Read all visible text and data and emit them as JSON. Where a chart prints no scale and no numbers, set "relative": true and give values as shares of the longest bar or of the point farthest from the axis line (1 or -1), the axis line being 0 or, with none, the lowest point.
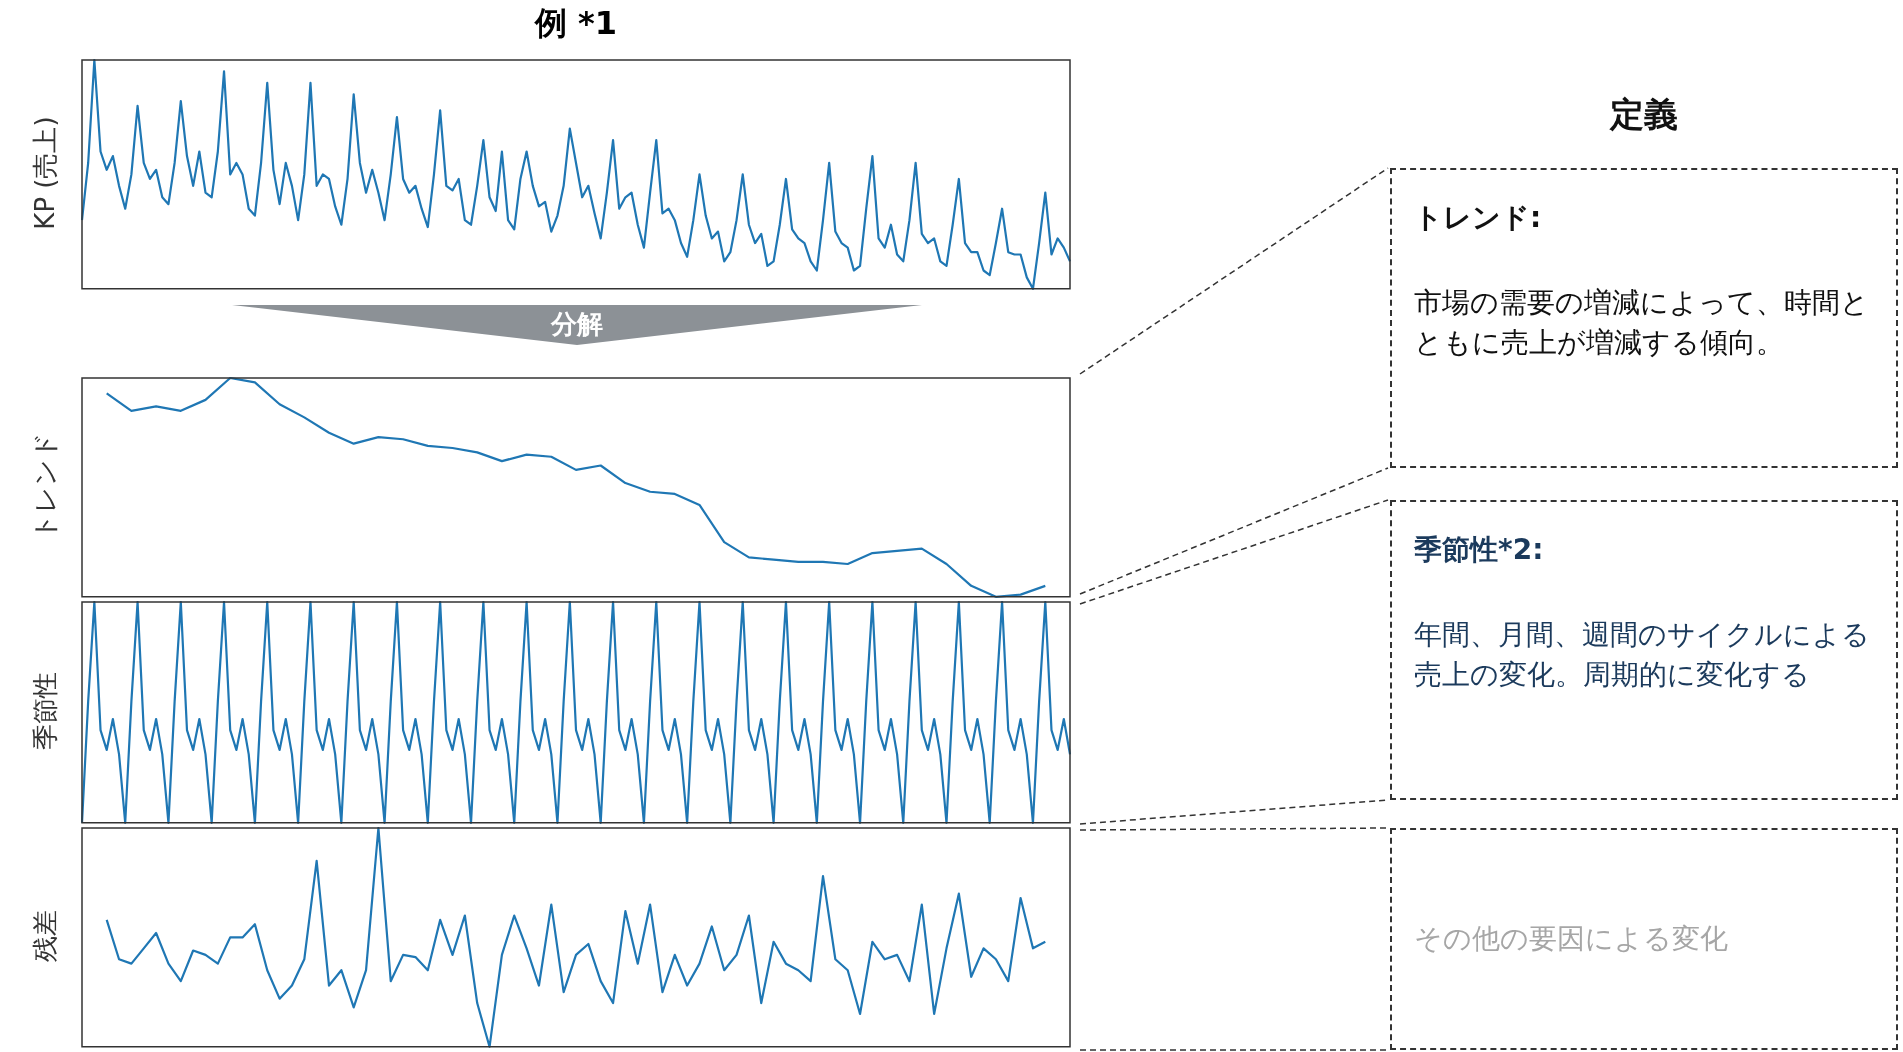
{
  "chart_data": [
    {
      "type": "line",
      "relative": true,
      "title": "例 *1",
      "ylabel": "KP (売上)",
      "annotations": [
        "分解"
      ],
      "categories": [
        null,
        null,
        null,
        null,
        null,
        null,
        null,
        null,
        null,
        null,
        null,
        null,
        null,
        null,
        null,
        null,
        null,
        null,
        null,
        null,
        null,
        null,
        null,
        null,
        null,
        null,
        null,
        null,
        null,
        null,
        null,
        null,
        null,
        null,
        null,
        null,
        null,
        null,
        null,
        null,
        null,
        null,
        null,
        null,
        null,
        null,
        null,
        null,
        null,
        null,
        null,
        null,
        null,
        null,
        null,
        null,
        null,
        null,
        null,
        null,
        null,
        null,
        null,
        null,
        null,
        null,
        null,
        null,
        null,
        null,
        null,
        null,
        null,
        null,
        null,
        null,
        null,
        null,
        null,
        null,
        null,
        null,
        null,
        null,
        null,
        null,
        null,
        null,
        null,
        null,
        null,
        null,
        null,
        null,
        null,
        null,
        null,
        null,
        null,
        null,
        null,
        null,
        null,
        null,
        null,
        null,
        null,
        null,
        null,
        null,
        null,
        null,
        null,
        null,
        null,
        null,
        null,
        null,
        null,
        null,
        null,
        null,
        null,
        null,
        null,
        null,
        null,
        null,
        null,
        null,
        null,
        null,
        null,
        null,
        null,
        null,
        null,
        null,
        null,
        null,
        null,
        null,
        null,
        null,
        null,
        null,
        null,
        null,
        null,
        null,
        null,
        null,
        null,
        null,
        null,
        null,
        null,
        null,
        null,
        null,
        null
      ],
      "series": [
        {
          "color": "#1f77b4",
          "values": [
            0.3,
            0.55,
            1.0,
            0.6,
            0.52,
            0.58,
            0.45,
            0.35,
            0.5,
            0.8,
            0.55,
            0.48,
            0.52,
            0.4,
            0.37,
            0.55,
            0.82,
            0.58,
            0.45,
            0.6,
            0.42,
            0.4,
            0.6,
            0.95,
            0.5,
            0.55,
            0.5,
            0.35,
            0.32,
            0.55,
            0.9,
            0.52,
            0.37,
            0.55,
            0.45,
            0.3,
            0.5,
            0.9,
            0.45,
            0.5,
            0.48,
            0.36,
            0.28,
            0.48,
            0.85,
            0.55,
            0.42,
            0.52,
            0.42,
            0.3,
            0.5,
            0.75,
            0.48,
            0.42,
            0.45,
            0.35,
            0.27,
            0.5,
            0.78,
            0.45,
            0.43,
            0.48,
            0.3,
            0.28,
            0.45,
            0.65,
            0.4,
            0.34,
            0.6,
            0.3,
            0.26,
            0.48,
            0.6,
            0.45,
            0.36,
            0.38,
            0.25,
            0.32,
            0.45,
            0.7,
            0.55,
            0.4,
            0.45,
            0.33,
            0.22,
            0.42,
            0.65,
            0.35,
            0.4,
            0.42,
            0.28,
            0.18,
            0.42,
            0.65,
            0.33,
            0.35,
            0.3,
            0.2,
            0.14,
            0.3,
            0.5,
            0.32,
            0.22,
            0.25,
            0.12,
            0.16,
            0.3,
            0.5,
            0.28,
            0.2,
            0.24,
            0.1,
            0.12,
            0.28,
            0.48,
            0.26,
            0.22,
            0.2,
            0.12,
            0.08,
            0.3,
            0.55,
            0.25,
            0.2,
            0.18,
            0.08,
            0.1,
            0.35,
            0.58,
            0.22,
            0.18,
            0.28,
            0.15,
            0.12,
            0.3,
            0.55,
            0.24,
            0.2,
            0.22,
            0.12,
            0.1,
            0.28,
            0.48,
            0.2,
            0.16,
            0.16,
            0.08,
            0.06,
            0.2,
            0.35,
            0.16,
            0.15,
            0.15,
            0.05,
            0.0,
            0.2,
            0.42,
            0.15,
            0.22,
            0.18,
            0.12
          ]
        }
      ]
    },
    {
      "type": "line",
      "relative": true,
      "ylabel": "トレンド",
      "annotations": [
        "定義",
        "トレンド:",
        "市場の需要の増減によって、時間とともに売上が増減する傾向。"
      ],
      "categories": [
        null,
        null,
        null,
        null,
        null,
        null,
        null,
        null,
        null,
        null,
        null,
        null,
        null,
        null,
        null,
        null,
        null,
        null,
        null,
        null,
        null,
        null,
        null,
        null,
        null,
        null,
        null,
        null,
        null,
        null,
        null,
        null,
        null,
        null,
        null,
        null,
        null,
        null,
        null,
        null,
        null
      ],
      "series": [
        {
          "color": "#1f77b4",
          "values": [
            null,
            0.93,
            0.85,
            0.87,
            0.85,
            0.9,
            1.0,
            0.98,
            0.88,
            0.82,
            0.75,
            0.7,
            0.73,
            0.72,
            0.69,
            0.68,
            0.66,
            0.62,
            0.65,
            0.64,
            0.58,
            0.6,
            0.52,
            0.48,
            0.47,
            0.42,
            0.25,
            0.18,
            0.17,
            0.16,
            0.16,
            0.15,
            0.2,
            0.21,
            0.22,
            0.15,
            0.05,
            0.0,
            0.01,
            0.05,
            null
          ]
        }
      ]
    },
    {
      "type": "line",
      "relative": true,
      "ylabel": "季節性",
      "annotations": [
        "季節性*2:",
        "年間、月間、週間のサイクルによる売上の変化。周期的に変化する"
      ],
      "categories": [
        null,
        null,
        null,
        null,
        null,
        null,
        null,
        null,
        null,
        null,
        null,
        null,
        null,
        null,
        null,
        null,
        null,
        null,
        null,
        null,
        null,
        null,
        null,
        null,
        null,
        null,
        null,
        null,
        null,
        null,
        null,
        null,
        null,
        null,
        null,
        null,
        null,
        null,
        null,
        null,
        null,
        null,
        null,
        null,
        null,
        null,
        null,
        null,
        null,
        null,
        null,
        null,
        null,
        null,
        null,
        null,
        null,
        null,
        null,
        null,
        null,
        null,
        null,
        null,
        null,
        null,
        null,
        null,
        null,
        null,
        null,
        null,
        null,
        null,
        null,
        null,
        null,
        null,
        null,
        null,
        null,
        null,
        null,
        null,
        null,
        null,
        null,
        null,
        null,
        null,
        null,
        null,
        null,
        null,
        null,
        null,
        null,
        null,
        null,
        null,
        null,
        null,
        null,
        null,
        null,
        null,
        null,
        null,
        null,
        null,
        null,
        null,
        null,
        null,
        null,
        null,
        null,
        null,
        null,
        null,
        null,
        null,
        null,
        null,
        null,
        null,
        null,
        null,
        null,
        null,
        null,
        null,
        null,
        null,
        null,
        null,
        null,
        null,
        null,
        null,
        null,
        null,
        null,
        null,
        null,
        null,
        null,
        null,
        null,
        null,
        null,
        null,
        null,
        null,
        null,
        null,
        null,
        null,
        null,
        null,
        null
      ],
      "series": [
        {
          "color": "#1f77b4",
          "values": [
            0.0,
            0.55,
            1.0,
            0.42,
            0.33,
            0.47,
            0.31,
            0.0,
            0.55,
            1.0,
            0.42,
            0.33,
            0.47,
            0.31,
            0.0,
            0.55,
            1.0,
            0.42,
            0.33,
            0.47,
            0.31,
            0.0,
            0.55,
            1.0,
            0.42,
            0.33,
            0.47,
            0.31,
            0.0,
            0.55,
            1.0,
            0.42,
            0.33,
            0.47,
            0.31,
            0.0,
            0.55,
            1.0,
            0.42,
            0.33,
            0.47,
            0.31,
            0.0,
            0.55,
            1.0,
            0.42,
            0.33,
            0.47,
            0.31,
            0.0,
            0.55,
            1.0,
            0.42,
            0.33,
            0.47,
            0.31,
            0.0,
            0.55,
            1.0,
            0.42,
            0.33,
            0.47,
            0.31,
            0.0,
            0.55,
            1.0,
            0.42,
            0.33,
            0.47,
            0.31,
            0.0,
            0.55,
            1.0,
            0.42,
            0.33,
            0.47,
            0.31,
            0.0,
            0.55,
            1.0,
            0.42,
            0.33,
            0.47,
            0.31,
            0.0,
            0.55,
            1.0,
            0.42,
            0.33,
            0.47,
            0.31,
            0.0,
            0.55,
            1.0,
            0.42,
            0.33,
            0.47,
            0.31,
            0.0,
            0.55,
            1.0,
            0.42,
            0.33,
            0.47,
            0.31,
            0.0,
            0.55,
            1.0,
            0.42,
            0.33,
            0.47,
            0.31,
            0.0,
            0.55,
            1.0,
            0.42,
            0.33,
            0.47,
            0.31,
            0.0,
            0.55,
            1.0,
            0.42,
            0.33,
            0.47,
            0.31,
            0.0,
            0.55,
            1.0,
            0.42,
            0.33,
            0.47,
            0.31,
            0.0,
            0.55,
            1.0,
            0.42,
            0.33,
            0.47,
            0.31,
            0.0,
            0.55,
            1.0,
            0.42,
            0.33,
            0.47,
            0.31,
            0.0,
            0.55,
            1.0,
            0.42,
            0.33,
            0.47,
            0.31,
            0.0,
            0.55,
            1.0,
            0.42,
            0.33,
            0.47,
            0.31
          ]
        }
      ]
    },
    {
      "type": "line",
      "relative": true,
      "ylabel": "残差",
      "annotations": [
        "その他の要因による変化"
      ],
      "categories": [
        null,
        null,
        null,
        null,
        null,
        null,
        null,
        null,
        null,
        null,
        null,
        null,
        null,
        null,
        null,
        null,
        null,
        null,
        null,
        null,
        null,
        null,
        null,
        null,
        null,
        null,
        null,
        null,
        null,
        null,
        null,
        null,
        null,
        null,
        null,
        null,
        null,
        null,
        null,
        null,
        null,
        null,
        null,
        null,
        null,
        null,
        null,
        null,
        null,
        null,
        null,
        null,
        null,
        null,
        null,
        null,
        null,
        null,
        null,
        null,
        null,
        null,
        null,
        null,
        null,
        null,
        null,
        null,
        null,
        null,
        null,
        null,
        null,
        null,
        null,
        null,
        null,
        null,
        null,
        null,
        null
      ],
      "series": [
        {
          "color": "#1f77b4",
          "values": [
            null,
            null,
            0.58,
            0.4,
            0.38,
            0.45,
            0.52,
            0.38,
            0.3,
            0.44,
            0.42,
            0.38,
            0.5,
            0.5,
            0.56,
            0.35,
            0.22,
            0.28,
            0.4,
            0.85,
            0.28,
            0.35,
            0.18,
            0.35,
            1.0,
            0.3,
            0.42,
            0.41,
            0.35,
            0.58,
            0.42,
            0.6,
            0.2,
            0.0,
            0.42,
            0.6,
            0.45,
            0.28,
            0.65,
            0.25,
            0.42,
            0.47,
            0.3,
            0.2,
            0.62,
            0.38,
            0.65,
            0.25,
            0.42,
            0.28,
            0.38,
            0.55,
            0.35,
            0.42,
            0.6,
            0.2,
            0.48,
            0.38,
            0.35,
            0.3,
            0.78,
            0.4,
            0.35,
            0.15,
            0.48,
            0.4,
            0.42,
            0.3,
            0.65,
            0.15,
            0.45,
            0.7,
            0.32,
            0.45,
            0.4,
            0.3,
            0.68,
            0.45,
            0.48,
            null,
            null
          ]
        }
      ]
    }
  ]
}
